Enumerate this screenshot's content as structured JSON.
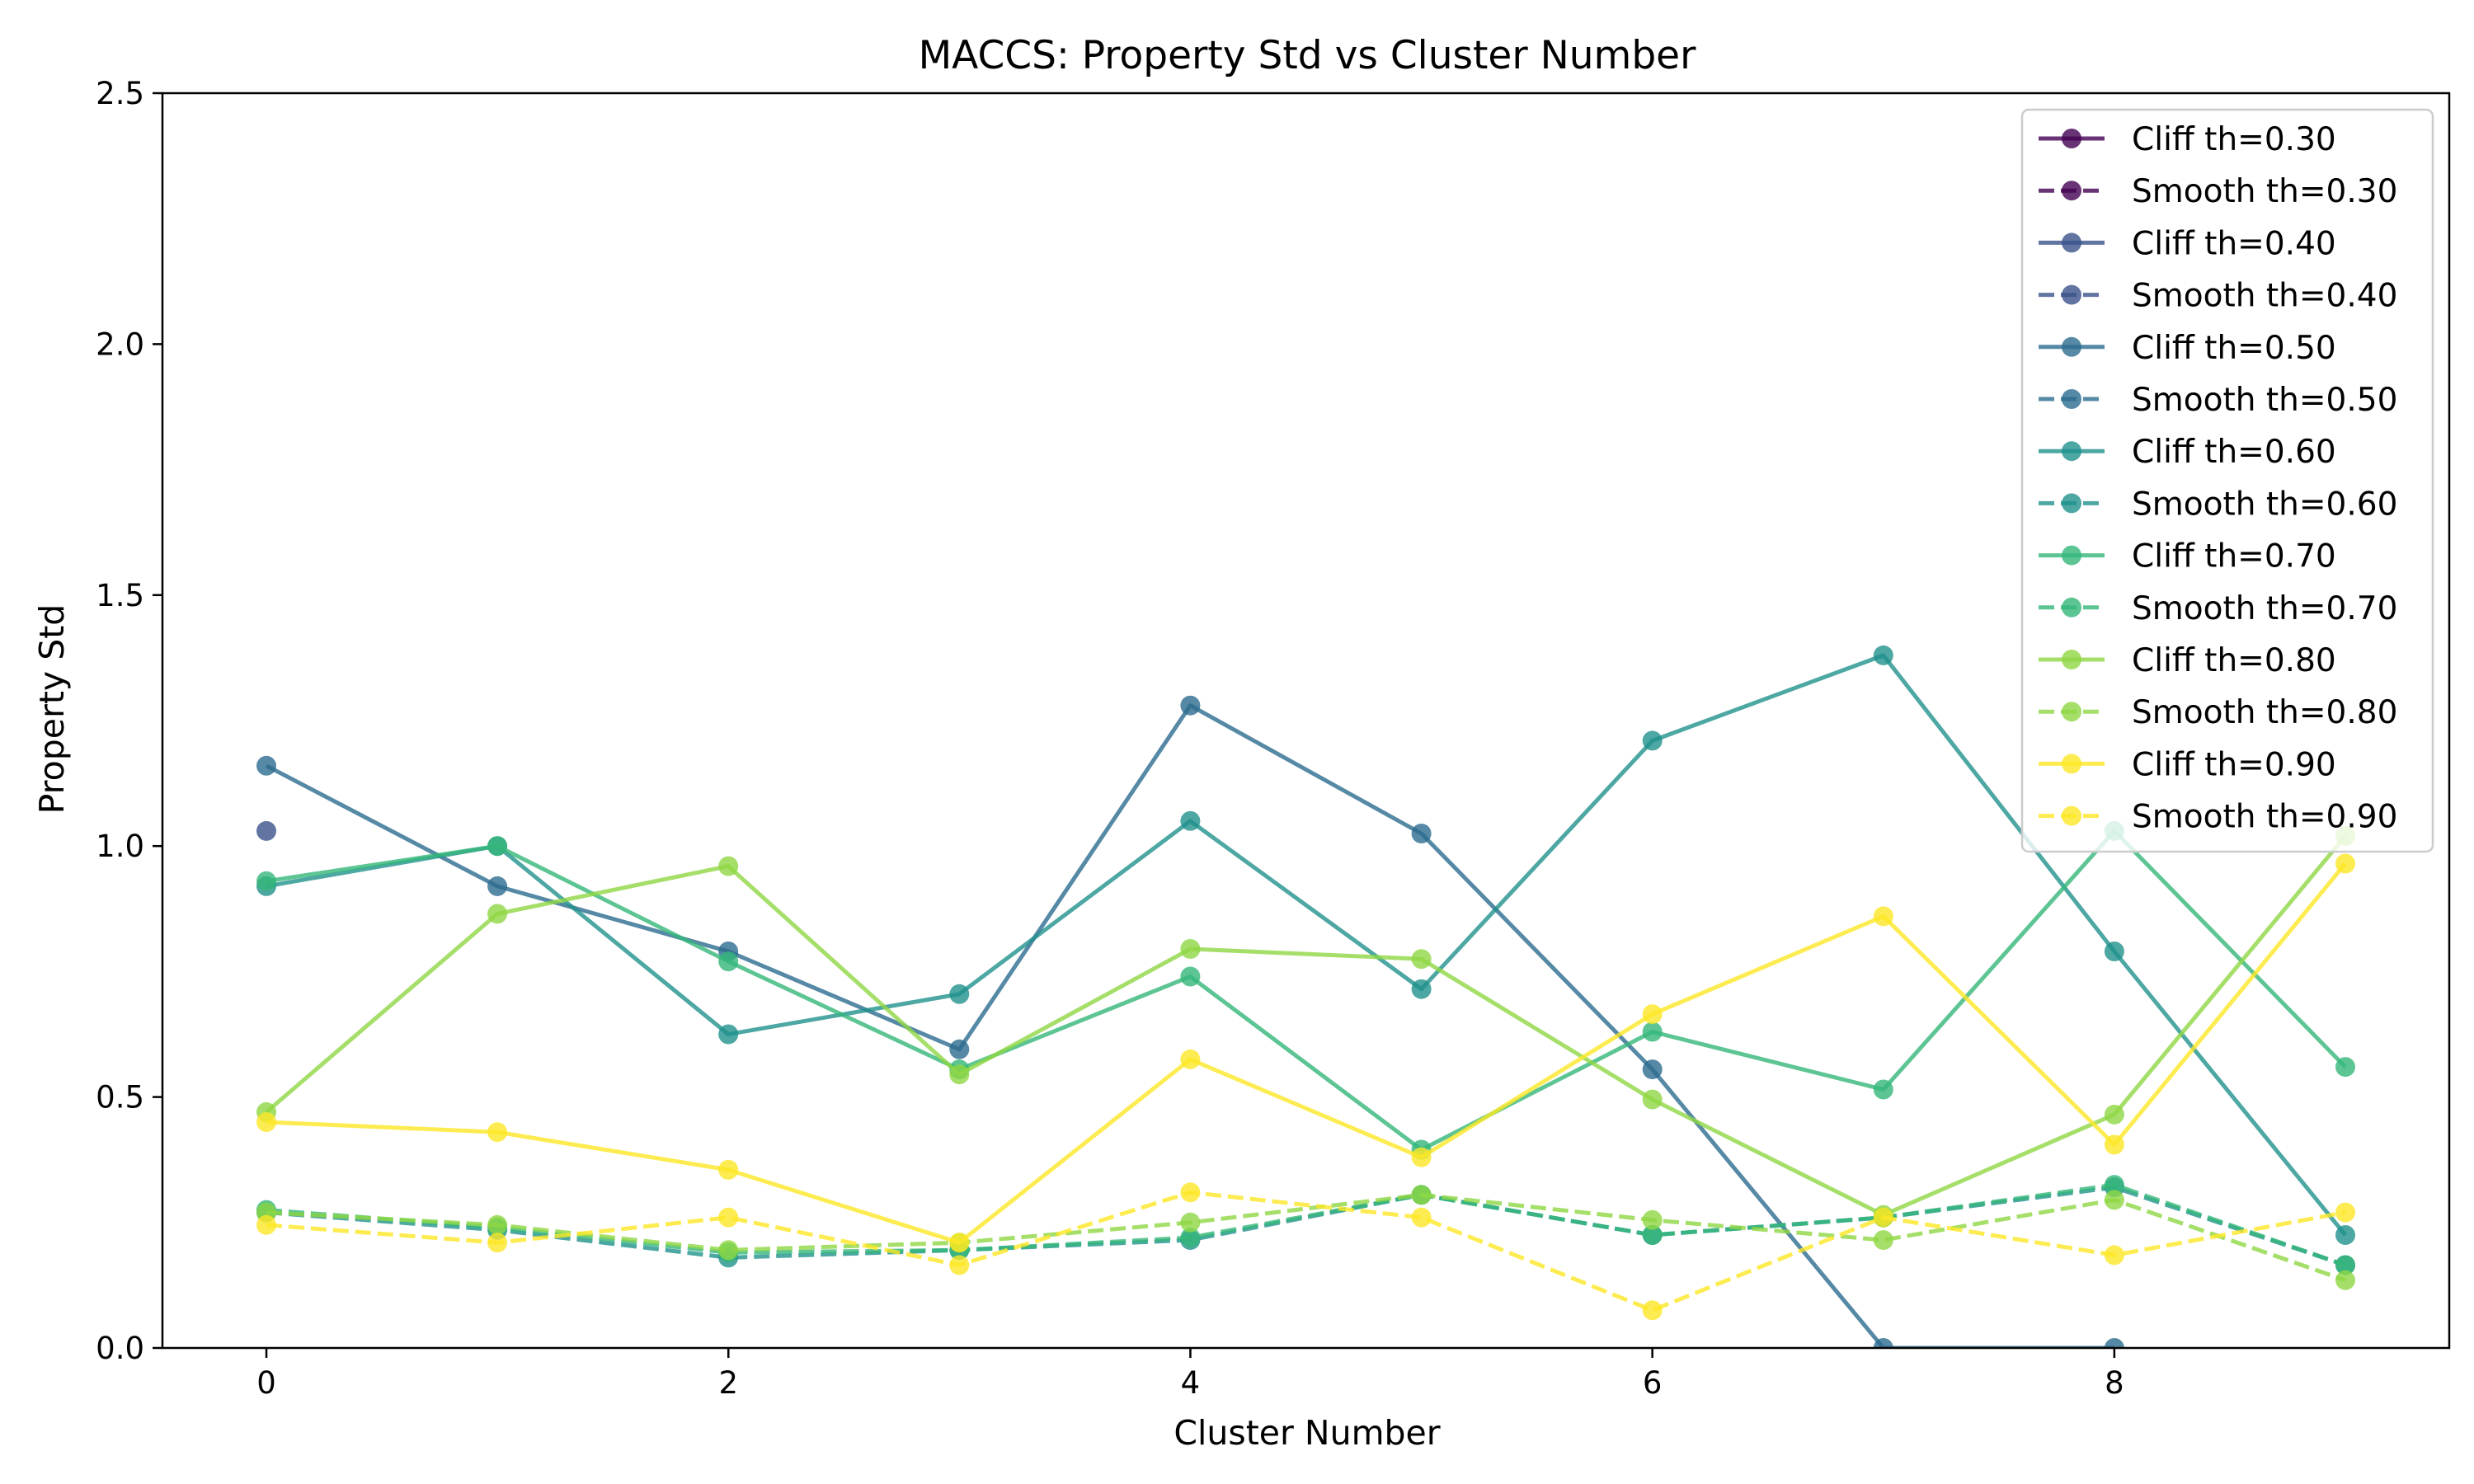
{
  "chart_data": {
    "type": "line",
    "title": "MACCS: Property Std vs Cluster Number",
    "xlabel": "Cluster Number",
    "ylabel": "Property Std",
    "xlim": [
      -0.45,
      9.45
    ],
    "ylim": [
      0,
      2.5
    ],
    "x_ticks": [
      0,
      2,
      4,
      6,
      8
    ],
    "y_ticks": [
      0.0,
      0.5,
      1.0,
      1.5,
      2.0,
      2.5
    ],
    "x_tick_labels": [
      "0",
      "2",
      "4",
      "6",
      "8"
    ],
    "y_tick_labels": [
      "0.0",
      "0.5",
      "1.0",
      "1.5",
      "2.0",
      "2.5"
    ],
    "grid": false,
    "legend_position": "top-right",
    "series": [
      {
        "name": "Cliff th=0.30",
        "color": "#440154",
        "style": "solid",
        "x": [],
        "y": []
      },
      {
        "name": "Smooth th=0.30",
        "color": "#440154",
        "style": "dashed",
        "x": [],
        "y": []
      },
      {
        "name": "Cliff th=0.40",
        "color": "#3b528b",
        "style": "solid",
        "x": [
          0
        ],
        "y": [
          1.03
        ]
      },
      {
        "name": "Smooth th=0.40",
        "color": "#3b528b",
        "style": "dashed",
        "x": [],
        "y": []
      },
      {
        "name": "Cliff th=0.50",
        "color": "#2c6b8e",
        "style": "solid",
        "x": [
          0,
          1,
          2,
          3,
          4,
          5,
          6,
          7,
          8
        ],
        "y": [
          1.16,
          0.92,
          0.79,
          0.595,
          1.28,
          1.025,
          0.555,
          0.0,
          0.0
        ]
      },
      {
        "name": "Smooth th=0.50",
        "color": "#2c6b8e",
        "style": "dashed",
        "x": [],
        "y": []
      },
      {
        "name": "Cliff th=0.60",
        "color": "#21918c",
        "style": "solid",
        "x": [
          0,
          1,
          2,
          3,
          4,
          5,
          6,
          7,
          8,
          9
        ],
        "y": [
          0.92,
          1.0,
          0.625,
          0.705,
          1.05,
          0.715,
          1.21,
          1.38,
          0.79,
          0.225
        ]
      },
      {
        "name": "Smooth th=0.60",
        "color": "#21918c",
        "style": "dashed",
        "x": [
          0,
          1,
          2,
          3,
          4,
          5,
          6,
          7,
          8,
          9
        ],
        "y": [
          0.27,
          0.235,
          0.18,
          0.195,
          0.215,
          0.305,
          0.225,
          0.26,
          0.32,
          0.165
        ]
      },
      {
        "name": "Cliff th=0.70",
        "color": "#35b779",
        "style": "solid",
        "x": [
          0,
          1,
          2,
          3,
          4,
          5,
          6,
          7,
          8,
          9
        ],
        "y": [
          0.93,
          1.0,
          0.77,
          0.555,
          0.74,
          0.395,
          0.63,
          0.515,
          1.03,
          0.56
        ]
      },
      {
        "name": "Smooth th=0.70",
        "color": "#35b779",
        "style": "dashed",
        "x": [
          0,
          1,
          2,
          3,
          4,
          5,
          6,
          7,
          8,
          9
        ],
        "y": [
          0.275,
          0.24,
          0.19,
          0.195,
          0.22,
          0.305,
          0.225,
          0.26,
          0.325,
          0.165
        ]
      },
      {
        "name": "Cliff th=0.80",
        "color": "#8fd744",
        "style": "solid",
        "x": [
          0,
          1,
          2,
          3,
          4,
          5,
          6,
          7,
          8,
          9
        ],
        "y": [
          0.47,
          0.865,
          0.96,
          0.545,
          0.795,
          0.775,
          0.495,
          0.265,
          0.465,
          1.02
        ]
      },
      {
        "name": "Smooth th=0.80",
        "color": "#8fd744",
        "style": "dashed",
        "x": [
          0,
          1,
          2,
          3,
          4,
          5,
          6,
          7,
          8,
          9
        ],
        "y": [
          0.27,
          0.245,
          0.195,
          0.21,
          0.25,
          0.305,
          0.255,
          0.215,
          0.295,
          0.135
        ]
      },
      {
        "name": "Cliff th=0.90",
        "color": "#fde725",
        "style": "solid",
        "x": [
          0,
          1,
          2,
          3,
          4,
          5,
          6,
          7,
          8,
          9
        ],
        "y": [
          0.45,
          0.43,
          0.355,
          0.21,
          0.575,
          0.38,
          0.665,
          0.86,
          0.405,
          0.965
        ]
      },
      {
        "name": "Smooth th=0.90",
        "color": "#fde725",
        "style": "dashed",
        "x": [
          0,
          1,
          2,
          3,
          4,
          5,
          6,
          7,
          8,
          9
        ],
        "y": [
          0.245,
          0.21,
          0.26,
          0.165,
          0.31,
          0.26,
          0.075,
          0.26,
          0.185,
          0.27
        ]
      }
    ]
  }
}
